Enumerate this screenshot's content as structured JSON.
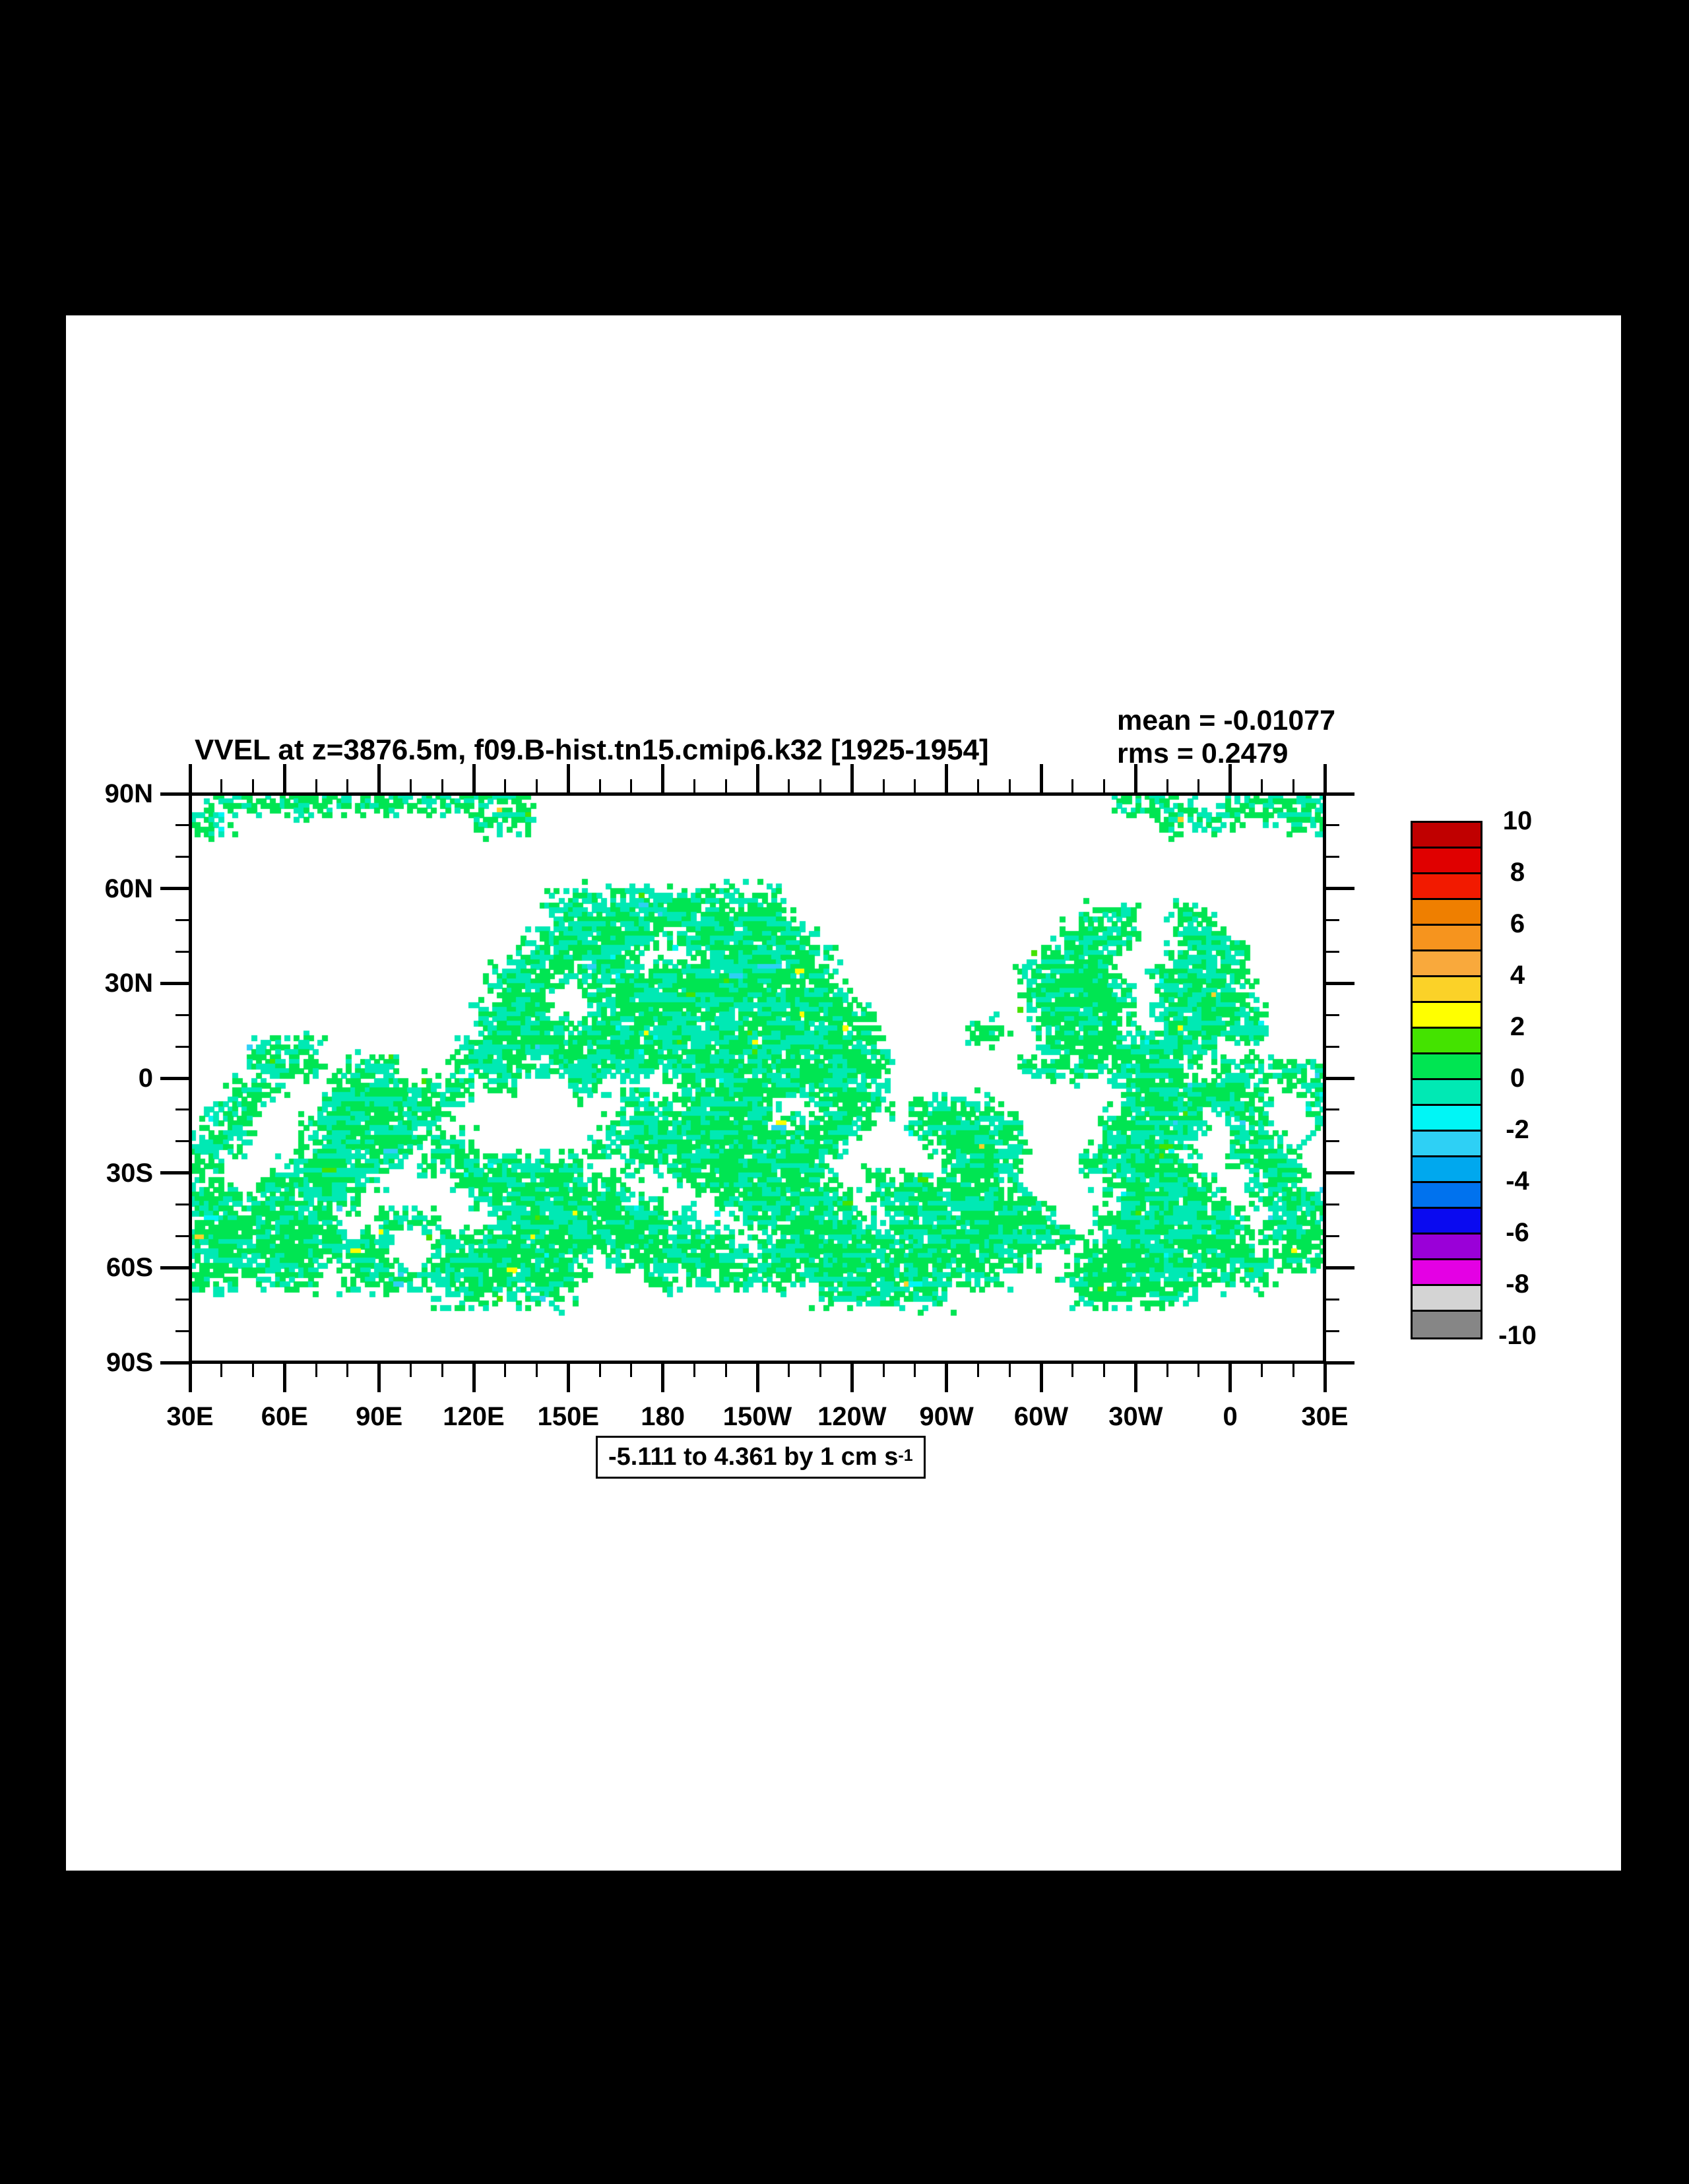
{
  "chart_data": {
    "type": "heatmap",
    "title": "VVEL at z=3876.5m, f09.B-hist.tn15.cmip6.k32 [1925-1954]",
    "stats_labels": {
      "mean": "mean = -0.01077",
      "rms": "rms = 0.2479"
    },
    "stats_values": {
      "mean": -0.01077,
      "rms": 0.2479
    },
    "variable": "VVEL",
    "x_axis": {
      "tick_labels": [
        "30E",
        "60E",
        "90E",
        "120E",
        "150E",
        "180",
        "150W",
        "120W",
        "90W",
        "60W",
        "30W",
        "0",
        "30E"
      ],
      "major_every_deg": 30,
      "minor_every_deg": 10,
      "span_deg": 360
    },
    "y_axis": {
      "tick_labels": [
        "90N",
        "60N",
        "30N",
        "0",
        "30S",
        "60S",
        "90S"
      ],
      "major_every_deg": 30,
      "minor_every_deg": 10,
      "span_deg": 180
    },
    "colorbar": {
      "labels": [
        "10",
        "8",
        "6",
        "4",
        "2",
        "0",
        "-2",
        "-4",
        "-6",
        "-8",
        "-10"
      ],
      "level_values": [
        10,
        8,
        6,
        4,
        2,
        0,
        -2,
        -4,
        -6,
        -8,
        -10
      ],
      "colors_top_to_bottom": [
        "#c00000",
        "#e00000",
        "#f21a00",
        "#ef7f00",
        "#f6941e",
        "#f9a93c",
        "#fbd228",
        "#ffff00",
        "#44e300",
        "#00e552",
        "#00e9b4",
        "#00f6f6",
        "#2ed0f5",
        "#00a8ee",
        "#0072ee",
        "#0a0af0",
        "#9a00d8",
        "#e400e4",
        "#d4d4d4",
        "#868686"
      ]
    },
    "range_box": {
      "text": "-5.111 to 4.361 by 1 cm s",
      "sup": "-1"
    },
    "data_range": {
      "min": -5.111,
      "max": 4.361,
      "contour_interval": 1,
      "units": "cm s-1"
    },
    "map": {
      "fill_note": "ocean cells speckled mostly 0..1 (green) and -1..0 (turquoise); white = no data/land",
      "primary_color": "#00e552",
      "secondary_color": "#00e9b4",
      "speck_colors": [
        "#44e300",
        "#ffff00",
        "#00f6f6",
        "#2ed0f5",
        "#fbd228"
      ],
      "background": "#ffffff",
      "mask_cols": 60,
      "mask_rows_count": 30,
      "mask_rows": [
        ".ooooooooooooooooo...............................oooo..ooooo",
        "oo.............ooo.................................oooooo.oo",
        "............................................................",
        "............................................................",
        "............................................................",
        "...................oooooooooooo.............................",
        "...................ooooooooooooo...............ooo..oo......",
        "..................ooooooooooooooo.............oooo..ooo.....",
        ".................ooooooo..oooooooo...........oooo...oooo....",
        "................oooooooooooooooooo..........ooooo..ooooo....",
        "................ooo..oooooooooooooo.........oooooo.ooooo....",
        "...............oooo..ooooooooooooooo........oooooo.oooooo...",
        "...............ooooooooooooooooooooo.....oo..ooooo.oooooo...",
        "...oooo.......ooooooooooooooooooooooo........ooooooooo......",
        "...oooo.ooo...ooooooooooooooooooooooo.......ooooooooo.oooooo",
        "..ooo..oooooooo.o...oo.o..ooooooooooo............oooooooo.oo",
        ".ooo...ooooooo.........oooooooo..oooo.ooooo......oooooooo..o",
        ".oo...ooooooo.........oooooooooooooo..oooooo....oooooo.oo..o",
        "ooo...oooooo.oo......oooooooooooooo....ooooo....ooooo..ooo..",
        "oo...oooooo.ooooooooo..ooooooooooo......oooo...oooooo..oooo.",
        "oo..oooooo....ooooooooo...oooooooo..oooooooo....oooooo..ooo.",
        "ooooooooo......oooooooooo...ooooooo.ooooooooo....oooooo.oooo",
        "oooooooo..ooo...ooooooooooo..ooooooo.ooooooooo..oooooooo.ooo",
        "ooooooooooo..oooooooooooooooo.ooooooooooooooooo.oooooooo.ooo",
        "ooooooooooo..oooooooo.ooooooooooooooooooooooo..ooooooooooooo",
        "ooooooo.ooooooooooooo...ooooooooooooooooooo...ooooooooooo...",
        ".............ooooooo.............ooooooo.......oooooo.......",
        "............................................................",
        "............................................................",
        "............................................................"
      ]
    }
  }
}
